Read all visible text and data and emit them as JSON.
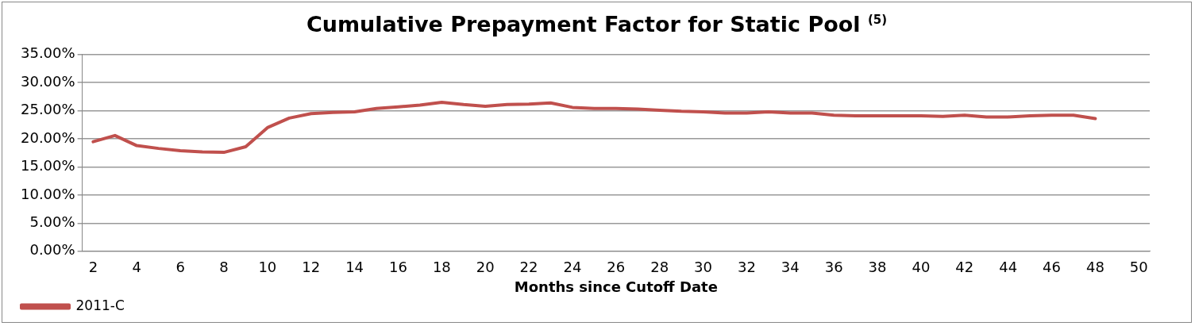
{
  "chart_data": {
    "type": "line",
    "title": "Cumulative Prepayment Factor for Static Pool $^{(5)}$",
    "xlabel": "Months since Cutoff Date",
    "x": [
      2,
      3,
      4,
      5,
      6,
      7,
      8,
      9,
      10,
      11,
      12,
      13,
      14,
      15,
      16,
      17,
      18,
      19,
      20,
      21,
      22,
      23,
      24,
      25,
      26,
      27,
      28,
      29,
      30,
      31,
      32,
      33,
      34,
      35,
      36,
      37,
      38,
      39,
      40,
      41,
      42,
      43,
      44,
      45,
      46,
      47,
      48
    ],
    "series": [
      {
        "name": "2011-C",
        "color": "#c0504d",
        "values": [
          19.5,
          20.6,
          18.8,
          18.3,
          17.9,
          17.7,
          17.6,
          18.6,
          22.0,
          23.7,
          24.5,
          24.7,
          24.8,
          25.4,
          25.7,
          26.0,
          26.5,
          26.1,
          25.8,
          26.1,
          26.2,
          26.4,
          25.6,
          25.4,
          25.4,
          25.3,
          25.1,
          24.9,
          24.8,
          24.6,
          24.6,
          24.8,
          24.6,
          24.6,
          24.2,
          24.1,
          24.1,
          24.1,
          24.1,
          24.0,
          24.2,
          23.9,
          23.9,
          24.1,
          24.2,
          24.2,
          23.6
        ]
      }
    ],
    "xlim": [
      1.5,
      50.5
    ],
    "xticks": [
      2,
      4,
      6,
      8,
      10,
      12,
      14,
      16,
      18,
      20,
      22,
      24,
      26,
      28,
      30,
      32,
      34,
      36,
      38,
      40,
      42,
      44,
      46,
      48,
      50
    ],
    "ylim": [
      0,
      35
    ],
    "yticks": [
      {
        "value": 0,
        "label": "0.00%"
      },
      {
        "value": 5,
        "label": "5.00%"
      },
      {
        "value": 10,
        "label": "10.00%"
      },
      {
        "value": 15,
        "label": "15.00%"
      },
      {
        "value": 20,
        "label": "20.00%"
      },
      {
        "value": 25,
        "label": "25.00%"
      },
      {
        "value": 30,
        "label": "30.00%"
      },
      {
        "value": 35,
        "label": "35.00%"
      }
    ],
    "grid": "y",
    "legend": "bottom left",
    "marker": "none",
    "line_style": "solid"
  }
}
